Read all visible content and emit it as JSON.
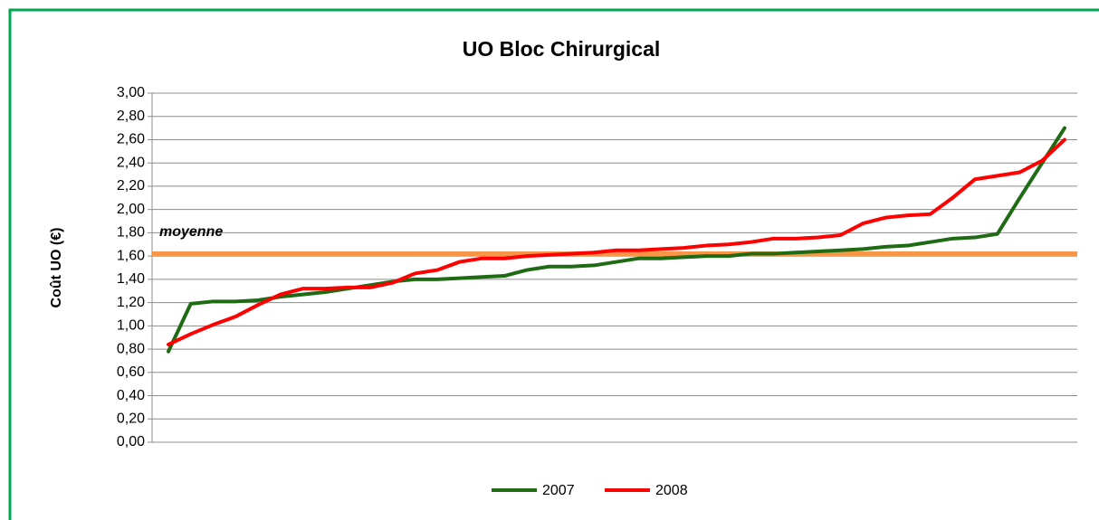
{
  "chart_data": {
    "type": "line",
    "title": "UO Bloc Chirurgical",
    "y_label": "Coût UO (€)",
    "categories": [
      null,
      null,
      null,
      null,
      null,
      null,
      null,
      null,
      null,
      null,
      null,
      null,
      null,
      null,
      null,
      null,
      null,
      null,
      null,
      null,
      null,
      null,
      null,
      null,
      null,
      null,
      null,
      null,
      null,
      null,
      null,
      null,
      null,
      null,
      null,
      null,
      null,
      null,
      null,
      null,
      null
    ],
    "series": [
      {
        "name": "2007",
        "color": "#1e6b14",
        "values": [
          0.78,
          1.19,
          1.21,
          1.21,
          1.22,
          1.25,
          1.27,
          1.29,
          1.32,
          1.35,
          1.38,
          1.4,
          1.4,
          1.41,
          1.42,
          1.43,
          1.48,
          1.51,
          1.51,
          1.52,
          1.55,
          1.58,
          1.58,
          1.59,
          1.6,
          1.6,
          1.62,
          1.62,
          1.63,
          1.64,
          1.65,
          1.66,
          1.68,
          1.69,
          1.72,
          1.75,
          1.76,
          1.79,
          2.1,
          2.4,
          2.7
        ]
      },
      {
        "name": "2008",
        "color": "#ff0000",
        "values": [
          0.84,
          0.93,
          1.01,
          1.08,
          1.18,
          1.27,
          1.32,
          1.32,
          1.33,
          1.33,
          1.37,
          1.45,
          1.48,
          1.55,
          1.58,
          1.58,
          1.6,
          1.61,
          1.62,
          1.63,
          1.65,
          1.65,
          1.66,
          1.67,
          1.69,
          1.7,
          1.72,
          1.75,
          1.75,
          1.76,
          1.78,
          1.88,
          1.93,
          1.95,
          1.96,
          2.1,
          2.26,
          2.29,
          2.32,
          2.42,
          2.6
        ]
      }
    ],
    "reference_line": {
      "label": "moyenne",
      "value": 1.62,
      "color": "#f79646"
    },
    "ylim": [
      0,
      3
    ],
    "yticks": [
      {
        "value": 0,
        "label": "0,00"
      },
      {
        "value": 0.2,
        "label": "0,20"
      },
      {
        "value": 0.4,
        "label": "0,40"
      },
      {
        "value": 0.6,
        "label": "0,60"
      },
      {
        "value": 0.8,
        "label": "0,80"
      },
      {
        "value": 1,
        "label": "1,00"
      },
      {
        "value": 1.2,
        "label": "1,20"
      },
      {
        "value": 1.4,
        "label": "1,40"
      },
      {
        "value": 1.6,
        "label": "1,60"
      },
      {
        "value": 1.8,
        "label": "1,80"
      },
      {
        "value": 2,
        "label": "2,00"
      },
      {
        "value": 2.2,
        "label": "2,20"
      },
      {
        "value": 2.4,
        "label": "2,40"
      },
      {
        "value": 2.6,
        "label": "2,60"
      },
      {
        "value": 2.8,
        "label": "2,80"
      },
      {
        "value": 3,
        "label": "3,00"
      }
    ],
    "grid": true,
    "legend": "bottom"
  }
}
